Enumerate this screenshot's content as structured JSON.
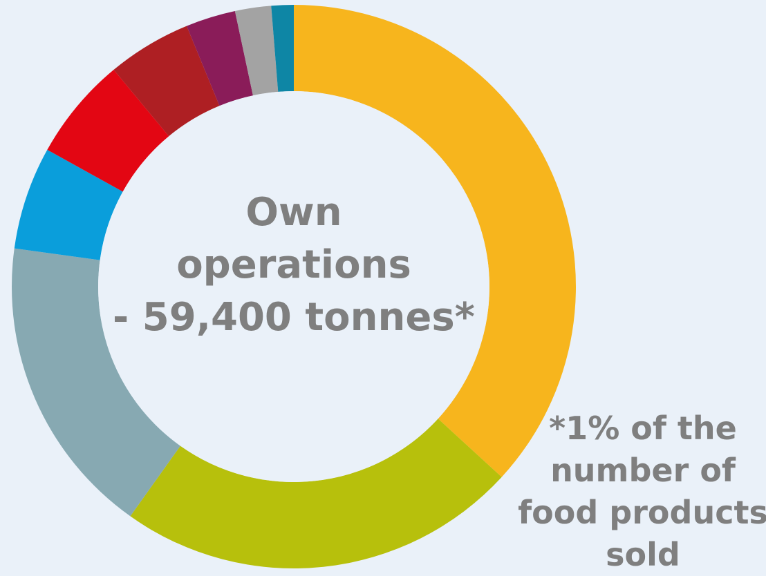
{
  "chart_data": {
    "type": "pie",
    "donut": true,
    "title": "",
    "center_label": [
      "Own",
      "operations",
      "- 59,400 tonnes*"
    ],
    "footnote": [
      "*1% of the",
      "number of",
      "food products",
      "sold"
    ],
    "slices": [
      {
        "value": 37.4,
        "color": "#f7b51d"
      },
      {
        "value": 23.4,
        "color": "#b7c00c"
      },
      {
        "value": 17.6,
        "color": "#87a9b2"
      },
      {
        "value": 6.0,
        "color": "#0a9edb"
      },
      {
        "value": 6.0,
        "color": "#e30613"
      },
      {
        "value": 4.9,
        "color": "#ae1f23"
      },
      {
        "value": 2.9,
        "color": "#8a1c59"
      },
      {
        "value": 2.1,
        "color": "#a3a3a3"
      },
      {
        "value": 1.3,
        "color": "#0e86a5"
      }
    ]
  }
}
